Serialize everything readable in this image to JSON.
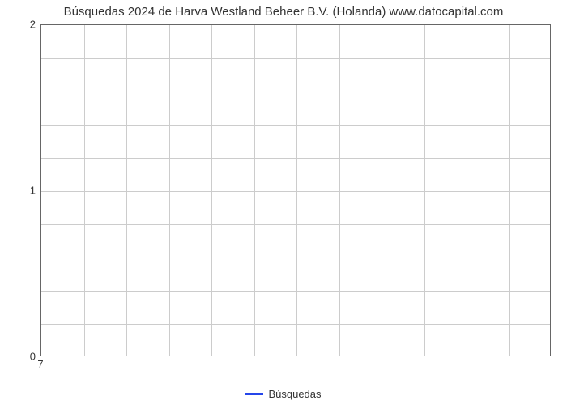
{
  "chart": {
    "type": "line",
    "title": "Búsquedas 2024 de Harva Westland Beheer B.V. (Holanda) www.datocapital.com",
    "title_fontsize": 15,
    "title_color": "#333333",
    "background_color": "#ffffff",
    "plot_border_color": "#666666",
    "grid_color": "#cccccc",
    "x": {
      "tick_labels": [
        "7"
      ],
      "tick_positions_pct": [
        0
      ],
      "minor_gridlines": 12
    },
    "y": {
      "min": 0,
      "max": 2,
      "major_ticks": [
        0,
        1,
        2
      ],
      "minor_gridlines_per_major": 5,
      "label_fontsize": 13,
      "label_color": "#333333"
    },
    "series": [
      {
        "name": "Búsquedas",
        "color": "#2546ea",
        "line_width": 3,
        "values": []
      }
    ],
    "legend": {
      "position": "bottom-center",
      "fontsize": 13,
      "color": "#333333"
    }
  }
}
